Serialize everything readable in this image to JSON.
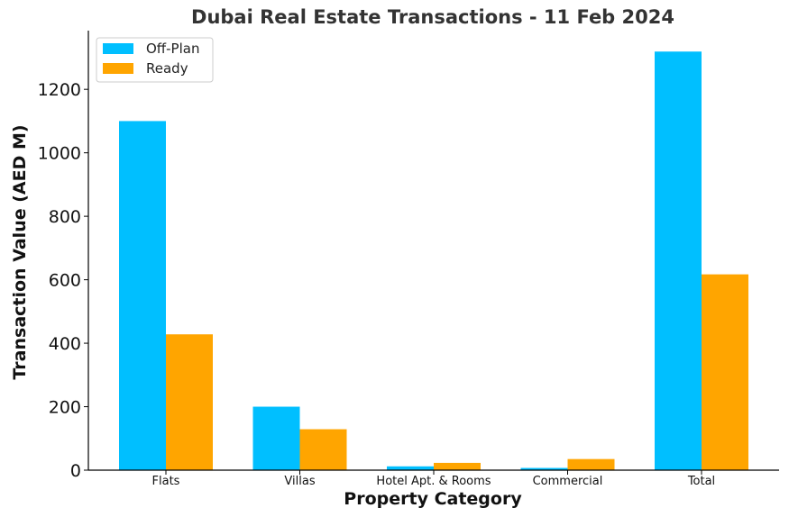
{
  "chart_data": {
    "type": "bar",
    "title": "Dubai Real Estate Transactions - 11 Feb 2024",
    "xlabel": "Property Category",
    "ylabel": "Transaction Value (AED M)",
    "categories": [
      "Flats",
      "Villas",
      "Hotel Apt. & Rooms",
      "Commercial",
      "Total"
    ],
    "series": [
      {
        "name": "Off-Plan",
        "color": "#00BFFF",
        "values": [
          1100,
          200,
          12,
          7,
          1319
        ]
      },
      {
        "name": "Ready",
        "color": "#FFA500",
        "values": [
          428,
          129,
          23,
          35,
          617
        ]
      }
    ],
    "ylim": [
      0,
      1385
    ],
    "yticks": [
      0,
      200,
      400,
      600,
      800,
      1000,
      1200
    ],
    "grid": false,
    "legend": "top-left"
  }
}
